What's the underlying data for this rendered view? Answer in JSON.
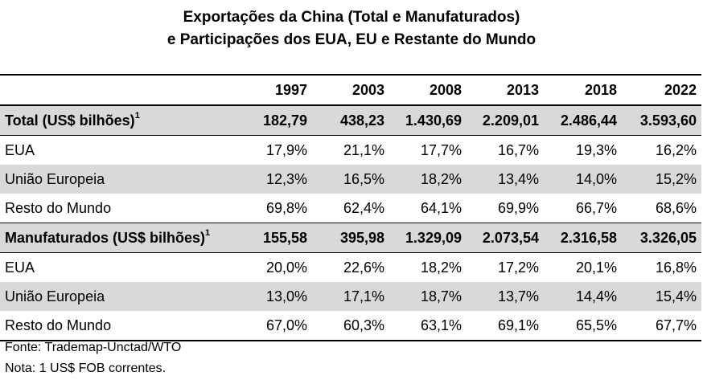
{
  "title": {
    "line1": "Exportações da China (Total e Manufaturados)",
    "line2": "e Participações dos EUA, EU e Restante do Mundo"
  },
  "table": {
    "years": [
      "1997",
      "2003",
      "2008",
      "2013",
      "2018",
      "2022"
    ],
    "groups": [
      {
        "label": "Total (US$ bilhões)",
        "sup": "1",
        "values": [
          "182,79",
          "438,23",
          "1.430,69",
          "2.209,01",
          "2.486,44",
          "3.593,60"
        ],
        "rows": [
          {
            "label": "EUA",
            "values": [
              "17,9%",
              "21,1%",
              "17,7%",
              "16,7%",
              "19,3%",
              "16,2%"
            ]
          },
          {
            "label": "União Europeia",
            "values": [
              "12,3%",
              "16,5%",
              "18,2%",
              "13,4%",
              "14,0%",
              "15,2%"
            ]
          },
          {
            "label": "Resto do Mundo",
            "values": [
              "69,8%",
              "62,4%",
              "64,1%",
              "69,9%",
              "66,7%",
              "68,6%"
            ]
          }
        ]
      },
      {
        "label": "Manufaturados (US$ bilhões)",
        "sup": "1",
        "values": [
          "155,58",
          "395,98",
          "1.329,09",
          "2.073,54",
          "2.316,58",
          "3.326,05"
        ],
        "rows": [
          {
            "label": "EUA",
            "values": [
              "20,0%",
              "22,6%",
              "18,2%",
              "17,2%",
              "20,1%",
              "16,8%"
            ]
          },
          {
            "label": "União Europeia",
            "values": [
              "13,0%",
              "17,1%",
              "18,7%",
              "13,7%",
              "14,4%",
              "15,4%"
            ]
          },
          {
            "label": "Resto do Mundo",
            "values": [
              "67,0%",
              "60,3%",
              "63,1%",
              "69,1%",
              "65,5%",
              "67,7%"
            ]
          }
        ]
      }
    ]
  },
  "notes": {
    "source": "Fonte: Trademap-Unctad/WTO",
    "note": "Nota: 1 US$ FOB correntes."
  },
  "colors": {
    "shade": "#d9d9d9"
  }
}
